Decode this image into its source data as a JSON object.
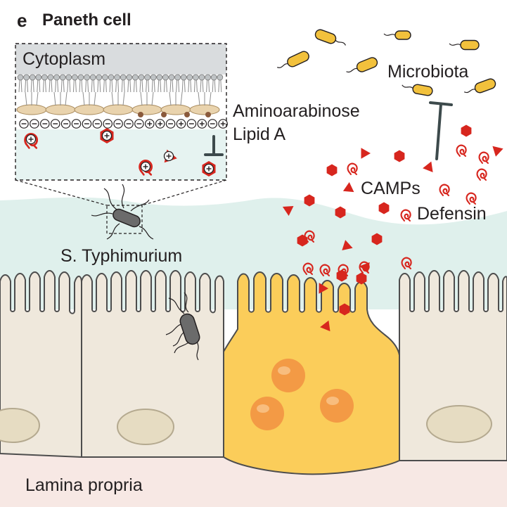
{
  "panel": {
    "letter": "e",
    "title": "Paneth cell"
  },
  "labels": {
    "cytoplasm": "Cytoplasm",
    "aminoarabinose": "Aminoarabinose",
    "lipid_a": "Lipid A",
    "microbiota": "Microbiota",
    "camps": "CAMPs",
    "defensin": "Defensin",
    "s_typhimurium": "S. Typhimurium",
    "lamina_propria": "Lamina propria"
  },
  "symbols": {
    "plus": "+",
    "minus": "−"
  },
  "colors": {
    "mucus": "#dff0ec",
    "epithelium": "#efe8dc",
    "epithelium_outline": "#4d4d4d",
    "paneth_cell": "#fbcd5a",
    "granule": "#f39a45",
    "lamina_propria": "#f7e8e4",
    "camp_red": "#d7261e",
    "bacteria_yellow": "#f2c13c",
    "salmonella_gray": "#6b6b6b",
    "inhibition_bar": "#3d4a4c"
  }
}
